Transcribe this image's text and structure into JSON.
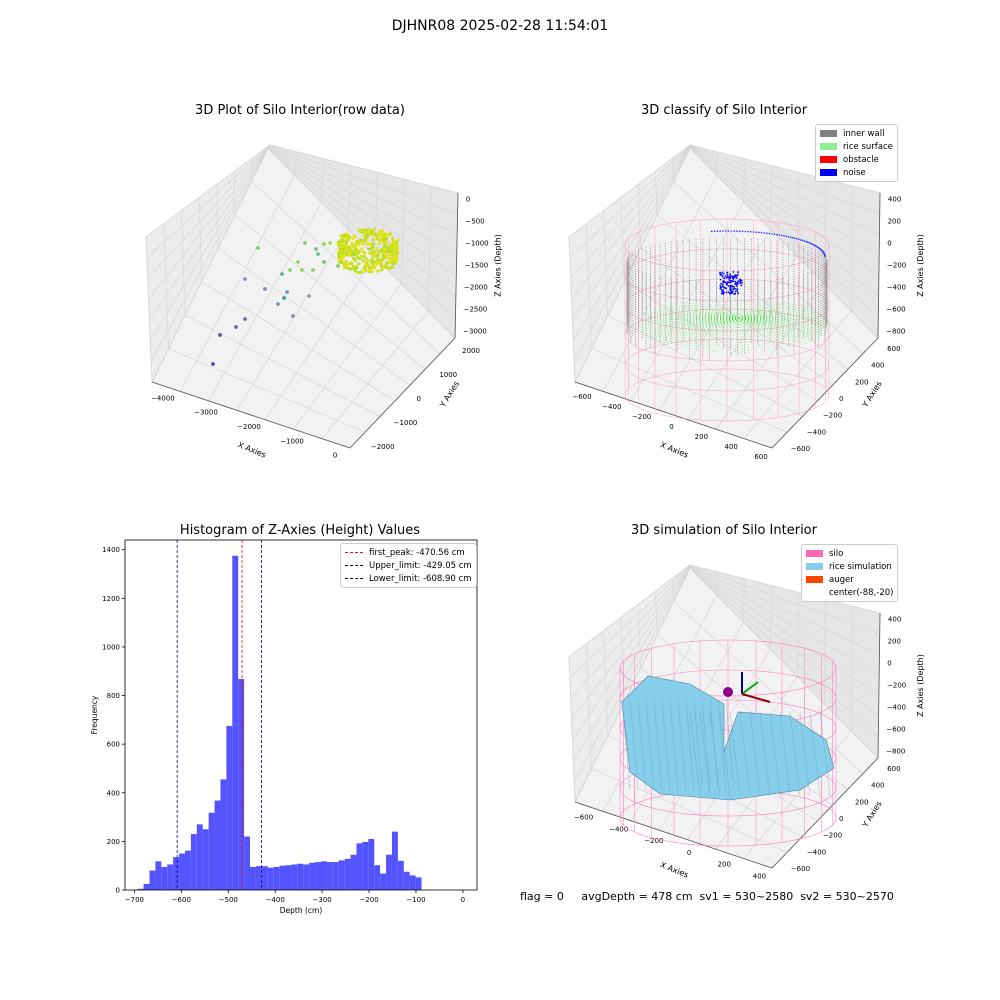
{
  "suptitle": "DJHNR08 2025-02-28 11:54:01",
  "panels": {
    "raw": {
      "title": "3D Plot of Silo Interior(row data)",
      "xlabel": "X Axies",
      "ylabel": "Y Axies",
      "zlabel": "Z Axies (Depth)",
      "xticks": [
        "−4000",
        "−3000",
        "−2000",
        "−1000",
        "0"
      ],
      "yticks": [
        "−2000",
        "−1000",
        "0",
        "1000",
        "2000"
      ],
      "zticks": [
        "0",
        "−500",
        "−1000",
        "−1500",
        "−2000",
        "−2500",
        "−3000"
      ]
    },
    "classify": {
      "title": "3D classify of Silo Interior",
      "xlabel": "X Axies",
      "ylabel": "Y Axies",
      "zlabel": "Z Axies (Depth)",
      "xticks": [
        "−600",
        "−400",
        "−200",
        "0",
        "200",
        "400",
        "600"
      ],
      "yticks": [
        "−600",
        "−400",
        "−200",
        "0",
        "200",
        "400",
        "600"
      ],
      "zticks": [
        "400",
        "200",
        "0",
        "−200",
        "−400",
        "−600",
        "−800"
      ],
      "legend": [
        {
          "label": "inner wall",
          "color": "#808080"
        },
        {
          "label": "rice surface",
          "color": "#90EE90"
        },
        {
          "label": "obstacle",
          "color": "#FF0000"
        },
        {
          "label": "noise",
          "color": "#0000FF"
        }
      ]
    },
    "simulation": {
      "title": "3D simulation of Silo Interior",
      "xlabel": "X Axies",
      "ylabel": "Y Axies",
      "zlabel": "Z Axies (Depth)",
      "xticks": [
        "−600",
        "−400",
        "−200",
        "0",
        "200",
        "400"
      ],
      "yticks": [
        "−600",
        "−400",
        "−200",
        "0",
        "200",
        "400",
        "600"
      ],
      "zticks": [
        "400",
        "200",
        "0",
        "−200",
        "−400",
        "−600",
        "−800"
      ],
      "legend": [
        {
          "label": "silo",
          "color": "#FF69B4"
        },
        {
          "label": "rice simulation",
          "color": "#87CEEB"
        },
        {
          "label": "auger",
          "color": "#FF4500"
        },
        {
          "label": "center(-88,-20)",
          "color": ""
        }
      ]
    }
  },
  "chart_data": {
    "type": "bar",
    "title": "Histogram of Z-Axies (Height) Values",
    "xlabel": "Depth (cm)",
    "ylabel": "Frequency",
    "xlim": [
      -720,
      30
    ],
    "ylim": [
      0,
      1440
    ],
    "xticks": [
      -700,
      -600,
      -500,
      -400,
      -300,
      -200,
      -100,
      0
    ],
    "yticks": [
      0,
      200,
      400,
      600,
      800,
      1000,
      1200,
      1400
    ],
    "bin_width": 12.6,
    "bin_start": -693,
    "color": "#4B4BFF",
    "values": [
      5,
      25,
      80,
      118,
      95,
      105,
      135,
      150,
      162,
      230,
      270,
      250,
      318,
      368,
      455,
      675,
      1375,
      868,
      220,
      95,
      98,
      98,
      92,
      95,
      100,
      102,
      105,
      108,
      105,
      112,
      115,
      118,
      115,
      115,
      122,
      128,
      145,
      192,
      198,
      210,
      102,
      68,
      145,
      240,
      120,
      75,
      60,
      52
    ],
    "vlines": [
      {
        "label": "first_peak: -470.56 cm",
        "value": -470.56,
        "color": "#FF0000"
      },
      {
        "label": "Upper_limit: -429.05 cm",
        "value": -429.05,
        "color": "#00008B"
      },
      {
        "label": "Lower_limit: -608.90 cm",
        "value": -608.9,
        "color": "#00008B"
      }
    ]
  },
  "bottom_text": "flag = 0     avgDepth = 478 cm  sv1 = 530~2580  sv2 = 530~2570"
}
